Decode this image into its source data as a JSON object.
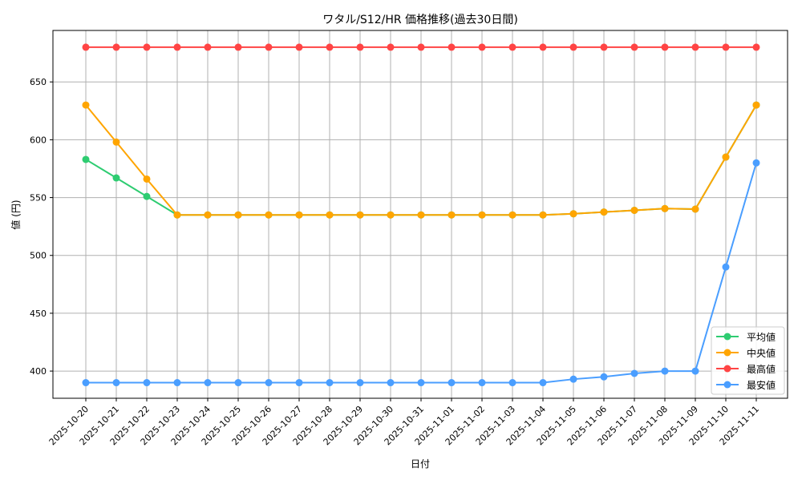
{
  "chart_data": {
    "type": "line",
    "title": "ワタル/S12/HR 価格推移(過去30日間)",
    "xlabel": "日付",
    "ylabel": "値 (円)",
    "ylim": [
      376.5,
      694.5
    ],
    "yticks": [
      400,
      450,
      500,
      550,
      600,
      650
    ],
    "grid": true,
    "legend_position": "lower-right",
    "x": [
      "2025-10-20",
      "2025-10-21",
      "2025-10-22",
      "2025-10-23",
      "2025-10-24",
      "2025-10-25",
      "2025-10-26",
      "2025-10-27",
      "2025-10-28",
      "2025-10-29",
      "2025-10-30",
      "2025-10-31",
      "2025-11-01",
      "2025-11-02",
      "2025-11-03",
      "2025-11-04",
      "2025-11-05",
      "2025-11-06",
      "2025-11-07",
      "2025-11-08",
      "2025-11-09",
      "2025-11-10",
      "2025-11-11"
    ],
    "series": [
      {
        "name": "平均値",
        "color": "#2ecc71",
        "values": [
          583,
          567,
          551,
          535,
          535,
          535,
          535,
          535,
          535,
          535,
          535,
          535,
          535,
          535,
          535,
          535,
          536,
          537.5,
          539,
          540.5,
          540,
          585,
          630
        ]
      },
      {
        "name": "中央値",
        "color": "#ffa500",
        "values": [
          630,
          598,
          566,
          535,
          535,
          535,
          535,
          535,
          535,
          535,
          535,
          535,
          535,
          535,
          535,
          535,
          536,
          537.5,
          539,
          540.5,
          540,
          585,
          630
        ]
      },
      {
        "name": "最高値",
        "color": "#ff4444",
        "values": [
          680,
          680,
          680,
          680,
          680,
          680,
          680,
          680,
          680,
          680,
          680,
          680,
          680,
          680,
          680,
          680,
          680,
          680,
          680,
          680,
          680,
          680,
          680
        ]
      },
      {
        "name": "最安値",
        "color": "#4a9eff",
        "values": [
          390,
          390,
          390,
          390,
          390,
          390,
          390,
          390,
          390,
          390,
          390,
          390,
          390,
          390,
          390,
          390,
          393,
          395,
          398,
          400,
          400,
          490,
          580
        ]
      }
    ]
  }
}
